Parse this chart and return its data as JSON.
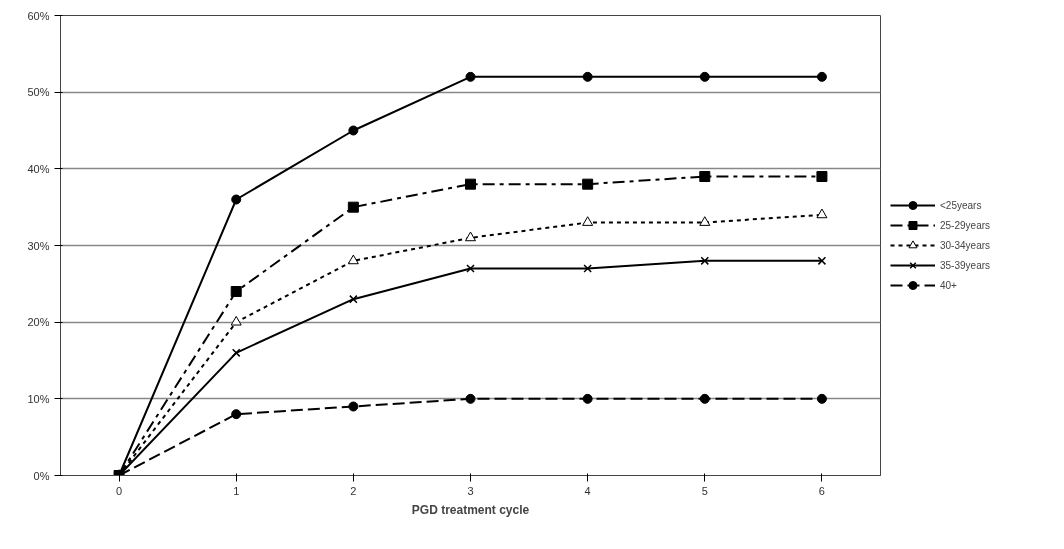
{
  "chart_data": {
    "type": "line",
    "xlabel": "PGD treatment cycle",
    "categories": [
      "0",
      "1",
      "2",
      "3",
      "4",
      "5",
      "6"
    ],
    "ylim": [
      0,
      60
    ],
    "yticks": [
      {
        "value": 0,
        "label": "0%"
      },
      {
        "value": 10,
        "label": "10%"
      },
      {
        "value": 20,
        "label": "20%"
      },
      {
        "value": 30,
        "label": "30%"
      },
      {
        "value": 40,
        "label": "40%"
      },
      {
        "value": 50,
        "label": "50%"
      },
      {
        "value": 60,
        "label": "60%"
      }
    ],
    "grid": "y",
    "legend": "right",
    "series": [
      {
        "name": "<25years",
        "color": "#000000",
        "marker": "circle",
        "line_style": "solid",
        "values": [
          0,
          36,
          45,
          52,
          52,
          52,
          52
        ]
      },
      {
        "name": "25-29years",
        "color": "#000000",
        "marker": "square",
        "line_style": "dashdot",
        "values": [
          0,
          24,
          35,
          38,
          38,
          39,
          39
        ]
      },
      {
        "name": "30-34years",
        "color": "#000000",
        "marker": "triangle",
        "line_style": "dotted",
        "values": [
          0,
          20,
          28,
          31,
          33,
          33,
          34
        ]
      },
      {
        "name": "35-39years",
        "color": "#000000",
        "marker": "cross",
        "line_style": "solid",
        "values": [
          0,
          16,
          23,
          27,
          27,
          28,
          28
        ]
      },
      {
        "name": "40+",
        "color": "#000000",
        "marker": "circle",
        "line_style": "dashed",
        "values": [
          0,
          8,
          9,
          10,
          10,
          10,
          10
        ]
      }
    ]
  }
}
